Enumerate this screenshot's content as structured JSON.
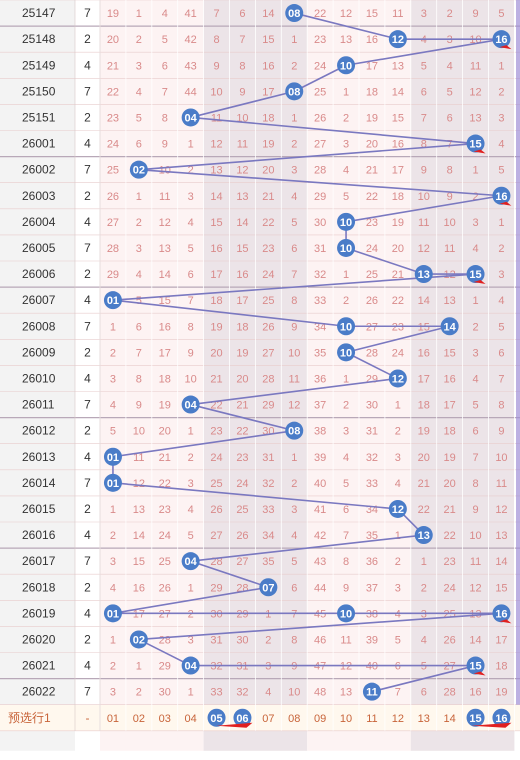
{
  "chart_data": {
    "type": "table",
    "rows": [
      {
        "period": "25147",
        "v": "7",
        "cells": [
          "19",
          "1",
          "4",
          "41",
          "7",
          "6",
          "14",
          "08",
          "22",
          "12",
          "15",
          "11",
          "3",
          "2",
          "9",
          "5"
        ]
      },
      {
        "period": "25148",
        "v": "2",
        "cells": [
          "20",
          "2",
          "5",
          "42",
          "8",
          "7",
          "15",
          "1",
          "23",
          "13",
          "16",
          "12",
          "4",
          "3",
          "10",
          "16"
        ]
      },
      {
        "period": "25149",
        "v": "4",
        "cells": [
          "21",
          "3",
          "6",
          "43",
          "9",
          "8",
          "16",
          "2",
          "24",
          "10",
          "17",
          "13",
          "5",
          "4",
          "11",
          "1"
        ]
      },
      {
        "period": "25150",
        "v": "7",
        "cells": [
          "22",
          "4",
          "7",
          "44",
          "10",
          "9",
          "17",
          "08",
          "25",
          "1",
          "18",
          "14",
          "6",
          "5",
          "12",
          "2"
        ]
      },
      {
        "period": "25151",
        "v": "2",
        "cells": [
          "23",
          "5",
          "8",
          "04",
          "11",
          "10",
          "18",
          "1",
          "26",
          "2",
          "19",
          "15",
          "7",
          "6",
          "13",
          "3"
        ]
      },
      {
        "period": "26001",
        "v": "4",
        "cells": [
          "24",
          "6",
          "9",
          "1",
          "12",
          "11",
          "19",
          "2",
          "27",
          "3",
          "20",
          "16",
          "8",
          "7",
          "15",
          "4"
        ]
      },
      {
        "period": "26002",
        "v": "7",
        "cells": [
          "25",
          "02",
          "10",
          "2",
          "13",
          "12",
          "20",
          "3",
          "28",
          "4",
          "21",
          "17",
          "9",
          "8",
          "1",
          "5"
        ]
      },
      {
        "period": "26003",
        "v": "2",
        "cells": [
          "26",
          "1",
          "11",
          "3",
          "14",
          "13",
          "21",
          "4",
          "29",
          "5",
          "22",
          "18",
          "10",
          "9",
          "2",
          "16"
        ]
      },
      {
        "period": "26004",
        "v": "4",
        "cells": [
          "27",
          "2",
          "12",
          "4",
          "15",
          "14",
          "22",
          "5",
          "30",
          "10",
          "23",
          "19",
          "11",
          "10",
          "3",
          "1"
        ]
      },
      {
        "period": "26005",
        "v": "7",
        "cells": [
          "28",
          "3",
          "13",
          "5",
          "16",
          "15",
          "23",
          "6",
          "31",
          "10",
          "24",
          "20",
          "12",
          "11",
          "4",
          "2"
        ]
      },
      {
        "period": "26006",
        "v": "2",
        "cells": [
          "29",
          "4",
          "14",
          "6",
          "17",
          "16",
          "24",
          "7",
          "32",
          "1",
          "25",
          "21",
          "13",
          "12",
          "15",
          "3"
        ]
      },
      {
        "period": "26007",
        "v": "4",
        "cells": [
          "01",
          "5",
          "15",
          "7",
          "18",
          "17",
          "25",
          "8",
          "33",
          "2",
          "26",
          "22",
          "14",
          "13",
          "1",
          "4"
        ]
      },
      {
        "period": "26008",
        "v": "7",
        "cells": [
          "1",
          "6",
          "16",
          "8",
          "19",
          "18",
          "26",
          "9",
          "34",
          "10",
          "27",
          "23",
          "15",
          "14",
          "2",
          "5"
        ]
      },
      {
        "period": "26009",
        "v": "2",
        "cells": [
          "2",
          "7",
          "17",
          "9",
          "20",
          "19",
          "27",
          "10",
          "35",
          "10",
          "28",
          "24",
          "16",
          "15",
          "3",
          "6"
        ]
      },
      {
        "period": "26010",
        "v": "4",
        "cells": [
          "3",
          "8",
          "18",
          "10",
          "21",
          "20",
          "28",
          "11",
          "36",
          "1",
          "29",
          "12",
          "17",
          "16",
          "4",
          "7"
        ]
      },
      {
        "period": "26011",
        "v": "7",
        "cells": [
          "4",
          "9",
          "19",
          "04",
          "22",
          "21",
          "29",
          "12",
          "37",
          "2",
          "30",
          "1",
          "18",
          "17",
          "5",
          "8"
        ]
      },
      {
        "period": "26012",
        "v": "2",
        "cells": [
          "5",
          "10",
          "20",
          "1",
          "23",
          "22",
          "30",
          "08",
          "38",
          "3",
          "31",
          "2",
          "19",
          "18",
          "6",
          "9"
        ]
      },
      {
        "period": "26013",
        "v": "4",
        "cells": [
          "01",
          "11",
          "21",
          "2",
          "24",
          "23",
          "31",
          "1",
          "39",
          "4",
          "32",
          "3",
          "20",
          "19",
          "7",
          "10"
        ]
      },
      {
        "period": "26014",
        "v": "7",
        "cells": [
          "01",
          "12",
          "22",
          "3",
          "25",
          "24",
          "32",
          "2",
          "40",
          "5",
          "33",
          "4",
          "21",
          "20",
          "8",
          "11"
        ]
      },
      {
        "period": "26015",
        "v": "2",
        "cells": [
          "1",
          "13",
          "23",
          "4",
          "26",
          "25",
          "33",
          "3",
          "41",
          "6",
          "34",
          "12",
          "22",
          "21",
          "9",
          "12"
        ]
      },
      {
        "period": "26016",
        "v": "4",
        "cells": [
          "2",
          "14",
          "24",
          "5",
          "27",
          "26",
          "34",
          "4",
          "42",
          "7",
          "35",
          "1",
          "13",
          "22",
          "10",
          "13"
        ]
      },
      {
        "period": "26017",
        "v": "7",
        "cells": [
          "3",
          "15",
          "25",
          "04",
          "28",
          "27",
          "35",
          "5",
          "43",
          "8",
          "36",
          "2",
          "1",
          "23",
          "11",
          "14"
        ]
      },
      {
        "period": "26018",
        "v": "2",
        "cells": [
          "4",
          "16",
          "26",
          "1",
          "29",
          "28",
          "07",
          "6",
          "44",
          "9",
          "37",
          "3",
          "2",
          "24",
          "12",
          "15"
        ]
      },
      {
        "period": "26019",
        "v": "4",
        "cells": [
          "01",
          "17",
          "27",
          "2",
          "30",
          "29",
          "1",
          "7",
          "45",
          "10",
          "38",
          "4",
          "3",
          "25",
          "13",
          "16"
        ]
      },
      {
        "period": "26020",
        "v": "2",
        "cells": [
          "1",
          "02",
          "28",
          "3",
          "31",
          "30",
          "2",
          "8",
          "46",
          "11",
          "39",
          "5",
          "4",
          "26",
          "14",
          "17"
        ]
      },
      {
        "period": "26021",
        "v": "4",
        "cells": [
          "2",
          "1",
          "29",
          "04",
          "32",
          "31",
          "3",
          "9",
          "47",
          "12",
          "40",
          "6",
          "5",
          "27",
          "15",
          "18"
        ]
      },
      {
        "period": "26022",
        "v": "7",
        "cells": [
          "3",
          "2",
          "30",
          "1",
          "33",
          "32",
          "4",
          "10",
          "48",
          "13",
          "11",
          "7",
          "6",
          "28",
          "16",
          "19"
        ]
      }
    ],
    "footer": {
      "label": "预选行1",
      "v": "-",
      "cells": [
        "01",
        "02",
        "03",
        "04",
        "05",
        "06",
        "07",
        "08",
        "09",
        "10",
        "11",
        "12",
        "13",
        "14",
        "15",
        "16"
      ],
      "highlighted": [
        "05",
        "06",
        "15",
        "16"
      ]
    },
    "colors": {
      "ball": "#4a7cc8",
      "line": "#7a78c0",
      "arrow": "#e02020",
      "number_text": "#d98a8a",
      "band_light": "#fdf3f3",
      "band_dark": "#ece4e8",
      "row_border": "#e8cccc",
      "period_bg": "#f3f3f3",
      "footer_text": "#c8643a",
      "footer_bg": "#fff8ee",
      "side_accent": "#9f8fd6"
    }
  }
}
